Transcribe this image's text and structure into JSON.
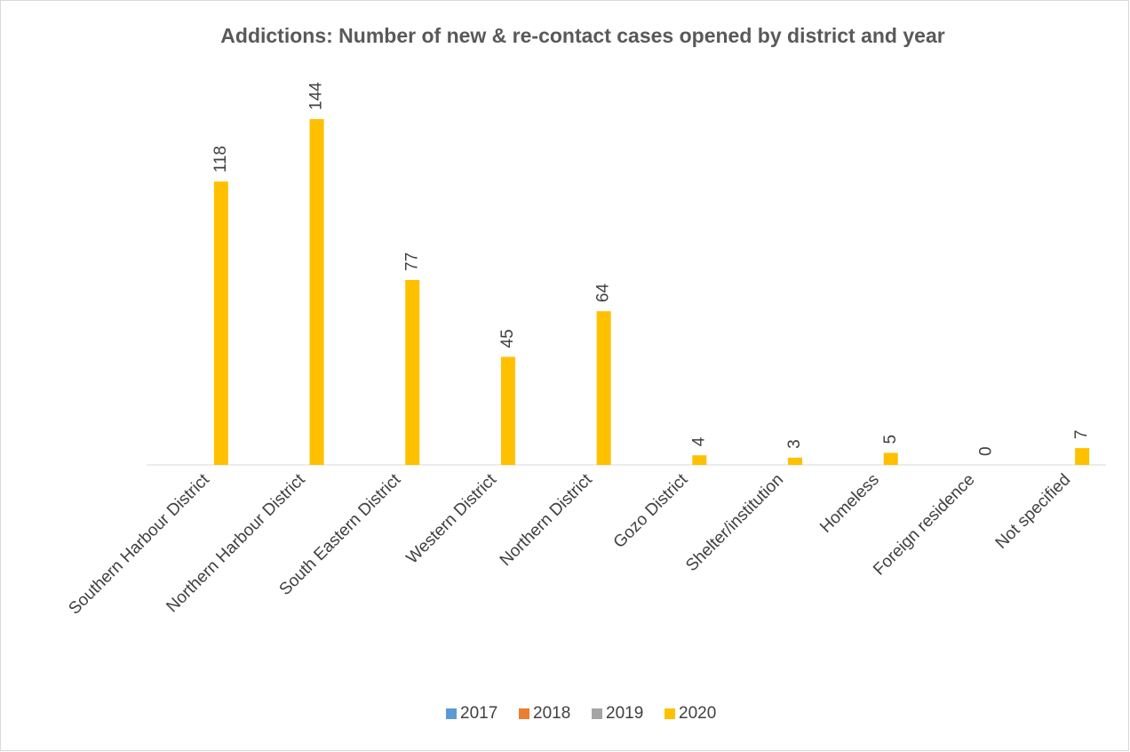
{
  "chart_data": {
    "type": "bar",
    "title": "Addictions: Number of new & re-contact cases opened by district and year",
    "categories": [
      "Southern Harbour District",
      "Northern Harbour District",
      "South Eastern District",
      "Western District",
      "Northern District",
      "Gozo District",
      "Shelter/institution",
      "Homeless",
      "Foreign residence",
      "Not specified"
    ],
    "series": [
      {
        "name": "2017",
        "color": "#5b9bd5",
        "values": [
          null,
          null,
          null,
          null,
          null,
          null,
          null,
          null,
          null,
          null
        ]
      },
      {
        "name": "2018",
        "color": "#ed7d31",
        "values": [
          null,
          null,
          null,
          null,
          null,
          null,
          null,
          null,
          null,
          null
        ]
      },
      {
        "name": "2019",
        "color": "#a5a5a5",
        "values": [
          null,
          null,
          null,
          null,
          null,
          null,
          null,
          null,
          null,
          null
        ]
      },
      {
        "name": "2020",
        "color": "#ffc000",
        "values": [
          118,
          144,
          77,
          45,
          64,
          4,
          3,
          5,
          0,
          7
        ]
      }
    ],
    "legend": "bottom"
  }
}
